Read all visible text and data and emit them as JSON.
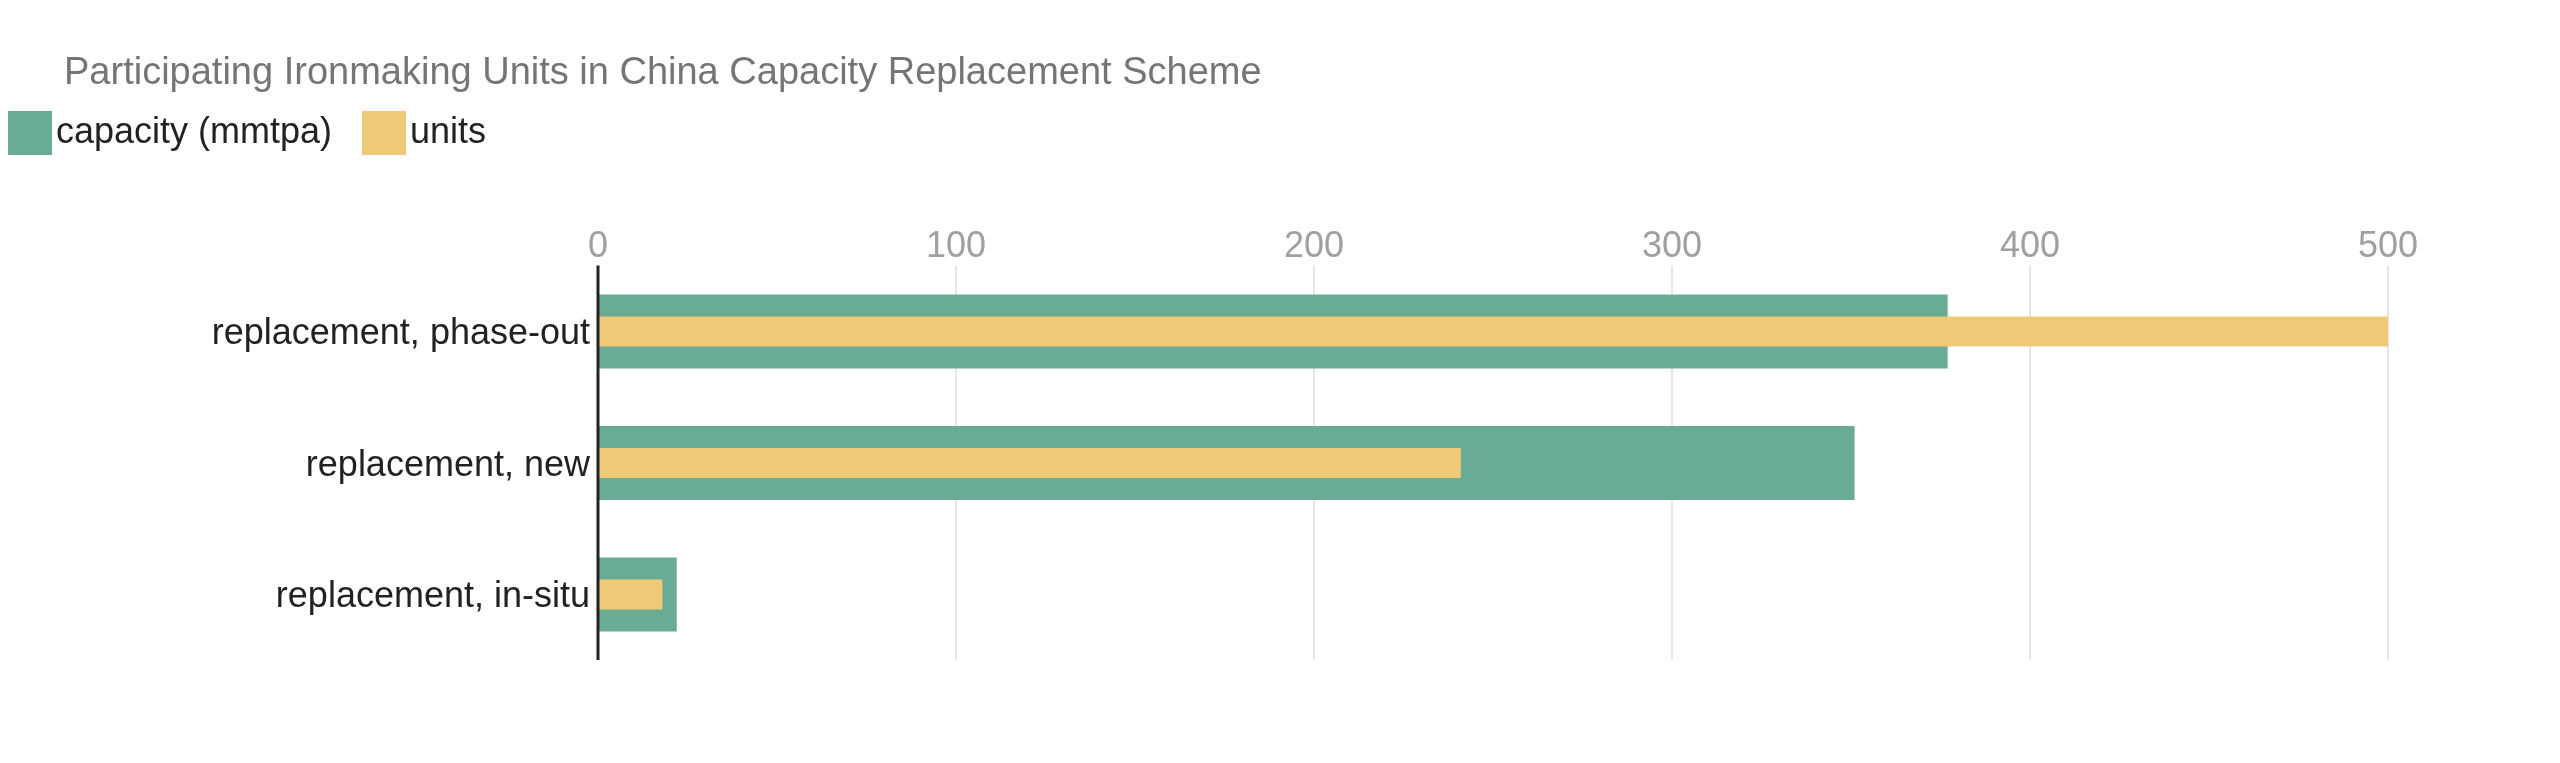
{
  "chart_data": {
    "type": "bar",
    "orientation": "horizontal",
    "title": "Participating Ironmaking Units in China Capacity Replacement Scheme",
    "categories": [
      "replacement, phase-out",
      "replacement, new",
      "replacement, in-situ"
    ],
    "series": [
      {
        "name": "capacity (mmtpa)",
        "color": "#6aab93",
        "values": [
          377,
          351,
          22
        ]
      },
      {
        "name": "units",
        "color": "#f0c978",
        "values": [
          500,
          241,
          18
        ]
      }
    ],
    "xlim": [
      0,
      500
    ],
    "xticks": [
      0,
      100,
      200,
      300,
      400,
      500
    ],
    "grid": "x",
    "legend": "top left"
  }
}
